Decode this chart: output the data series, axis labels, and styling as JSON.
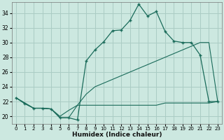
{
  "xlabel": "Humidex (Indice chaleur)",
  "bg_color": "#cce8e0",
  "grid_color": "#aaccc4",
  "line_color": "#1a6b5a",
  "xlim": [
    -0.5,
    23.5
  ],
  "ylim": [
    19.0,
    35.5
  ],
  "yticks": [
    20,
    22,
    24,
    26,
    28,
    30,
    32,
    34
  ],
  "xticks": [
    0,
    1,
    2,
    3,
    4,
    5,
    6,
    7,
    8,
    9,
    10,
    11,
    12,
    13,
    14,
    15,
    16,
    17,
    18,
    19,
    20,
    21,
    22,
    23
  ],
  "curve_x": [
    0,
    1,
    2,
    3,
    4,
    5,
    6,
    7,
    8,
    9,
    10,
    11,
    12,
    13,
    14,
    15,
    16,
    17,
    18,
    19,
    20,
    21,
    22,
    23
  ],
  "curve_y": [
    22.5,
    21.7,
    21.1,
    21.1,
    21.0,
    19.8,
    19.8,
    19.5,
    27.5,
    29.0,
    30.1,
    31.6,
    31.7,
    33.0,
    35.2,
    33.6,
    34.2,
    31.5,
    30.2,
    30.0,
    30.0,
    28.3,
    22.0,
    22.0
  ],
  "diag1_x": [
    0,
    2,
    3,
    4,
    5,
    6,
    7,
    8,
    9,
    10,
    11,
    12,
    13,
    14,
    15,
    16,
    17,
    18,
    19,
    20,
    21,
    22,
    23
  ],
  "diag1_y": [
    22.5,
    21.1,
    21.1,
    21.0,
    20.0,
    20.8,
    21.5,
    23.0,
    24.0,
    24.5,
    25.0,
    25.5,
    26.0,
    26.5,
    27.0,
    27.5,
    28.0,
    28.5,
    29.0,
    29.5,
    30.0,
    30.0,
    22.0
  ],
  "flat_x": [
    0,
    2,
    3,
    4,
    5,
    6,
    7,
    8,
    9,
    10,
    11,
    12,
    13,
    14,
    15,
    16,
    17,
    18,
    19,
    20,
    21,
    22,
    23
  ],
  "flat_y": [
    22.5,
    21.1,
    21.1,
    21.0,
    19.8,
    19.8,
    21.5,
    21.5,
    21.5,
    21.5,
    21.5,
    21.5,
    21.5,
    21.5,
    21.5,
    21.5,
    21.8,
    21.8,
    21.8,
    21.8,
    21.8,
    21.8,
    22.0
  ]
}
